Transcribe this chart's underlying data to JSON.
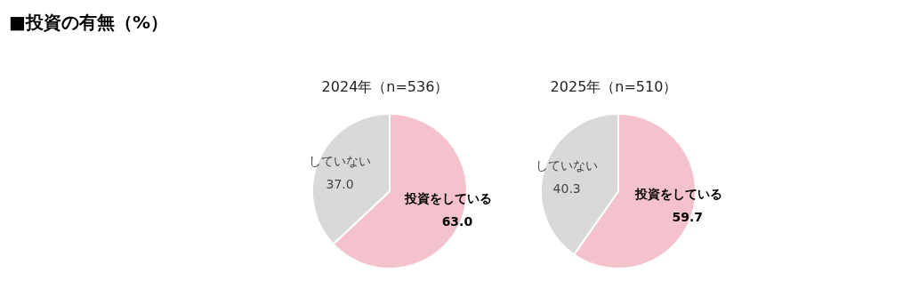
{
  "chart_data": [
    {
      "type": "pie",
      "title": "■投資の有無（%）",
      "subtitle": "2024年（n=536）",
      "categories": [
        "投資をしている",
        "していない"
      ],
      "values": [
        63.0,
        37.0
      ],
      "value_labels": [
        "63.0",
        "37.0"
      ],
      "colors": [
        "#f4c2cc",
        "#d9d9d9"
      ]
    },
    {
      "type": "pie",
      "title": "2025年（n=510）",
      "categories": [
        "投資をしている",
        "していない"
      ],
      "values": [
        59.7,
        40.3
      ],
      "value_labels": [
        "59.7",
        "40.3"
      ],
      "colors": [
        "#f4c2cc",
        "#d9d9d9"
      ]
    }
  ]
}
